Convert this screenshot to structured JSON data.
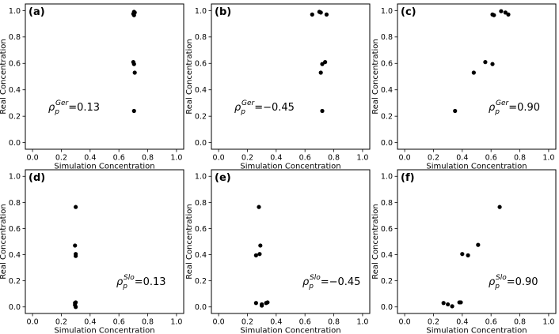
{
  "chart_data": [
    {
      "type": "scatter",
      "panel_label": "(a)",
      "xlabel": "Simulation Concentration",
      "ylabel": "Real Concentration",
      "xlim": [
        -0.05,
        1.05
      ],
      "ylim": [
        -0.05,
        1.05
      ],
      "xticks": [
        "0.0",
        "0.2",
        "0.4",
        "0.6",
        "0.8",
        "1.0"
      ],
      "yticks": [
        "0.0",
        "0.2",
        "0.4",
        "0.6",
        "0.8",
        "1.0"
      ],
      "annotation": {
        "symbol": "ρ",
        "sub": "p",
        "sup": "Ger",
        "value": "0.13",
        "position": "left-middle"
      },
      "points": [
        [
          0.705,
          0.99
        ],
        [
          0.7,
          0.975
        ],
        [
          0.71,
          0.985
        ],
        [
          0.705,
          0.965
        ],
        [
          0.7,
          0.61
        ],
        [
          0.705,
          0.595
        ],
        [
          0.71,
          0.53
        ],
        [
          0.705,
          0.24
        ]
      ]
    },
    {
      "type": "scatter",
      "panel_label": "(b)",
      "xlabel": "Simulation Concentration",
      "ylabel": "Real Concentration",
      "xlim": [
        -0.05,
        1.05
      ],
      "ylim": [
        -0.05,
        1.05
      ],
      "xticks": [
        "0.0",
        "0.2",
        "0.4",
        "0.6",
        "0.8",
        "1.0"
      ],
      "yticks": [
        "0.0",
        "0.2",
        "0.4",
        "0.6",
        "0.8",
        "1.0"
      ],
      "annotation": {
        "symbol": "ρ",
        "sub": "p",
        "sup": "Ger",
        "value": "−0.45",
        "position": "left-middle"
      },
      "points": [
        [
          0.65,
          0.97
        ],
        [
          0.7,
          0.99
        ],
        [
          0.75,
          0.97
        ],
        [
          0.71,
          0.985
        ],
        [
          0.74,
          0.61
        ],
        [
          0.72,
          0.595
        ],
        [
          0.71,
          0.53
        ],
        [
          0.72,
          0.24
        ]
      ]
    },
    {
      "type": "scatter",
      "panel_label": "(c)",
      "xlabel": "Simulation Concentration",
      "ylabel": "Real Concentration",
      "xlim": [
        -0.05,
        1.05
      ],
      "ylim": [
        -0.05,
        1.05
      ],
      "xticks": [
        "0.0",
        "0.2",
        "0.4",
        "0.6",
        "0.8",
        "1.0"
      ],
      "yticks": [
        "0.0",
        "0.2",
        "0.4",
        "0.6",
        "0.8",
        "1.0"
      ],
      "annotation": {
        "symbol": "ρ",
        "sub": "p",
        "sup": "Ger",
        "value": "0.90",
        "position": "right-middle"
      },
      "points": [
        [
          0.61,
          0.97
        ],
        [
          0.62,
          0.965
        ],
        [
          0.67,
          0.995
        ],
        [
          0.7,
          0.985
        ],
        [
          0.72,
          0.97
        ],
        [
          0.56,
          0.61
        ],
        [
          0.61,
          0.595
        ],
        [
          0.48,
          0.53
        ],
        [
          0.35,
          0.24
        ]
      ]
    },
    {
      "type": "scatter",
      "panel_label": "(d)",
      "xlabel": "Simulation Concentration",
      "ylabel": "Real Concentration",
      "xlim": [
        -0.05,
        1.05
      ],
      "ylim": [
        -0.05,
        1.05
      ],
      "xticks": [
        "0.0",
        "0.2",
        "0.4",
        "0.6",
        "0.8",
        "1.0"
      ],
      "yticks": [
        "0.0",
        "0.2",
        "0.4",
        "0.6",
        "0.8",
        "1.0"
      ],
      "annotation": {
        "symbol": "ρ",
        "sub": "p",
        "sup": "Slo",
        "value": "0.13",
        "position": "right-middle"
      },
      "points": [
        [
          0.3,
          0.765
        ],
        [
          0.295,
          0.47
        ],
        [
          0.3,
          0.405
        ],
        [
          0.3,
          0.39
        ],
        [
          0.295,
          0.03
        ],
        [
          0.3,
          0.035
        ],
        [
          0.295,
          0.015
        ],
        [
          0.3,
          0.0
        ]
      ]
    },
    {
      "type": "scatter",
      "panel_label": "(e)",
      "xlabel": "Simulation Concentration",
      "ylabel": "Real Concentration",
      "xlim": [
        -0.05,
        1.05
      ],
      "ylim": [
        -0.05,
        1.05
      ],
      "xticks": [
        "0.0",
        "0.2",
        "0.4",
        "0.6",
        "0.8",
        "1.0"
      ],
      "yticks": [
        "0.0",
        "0.2",
        "0.4",
        "0.6",
        "0.8",
        "1.0"
      ],
      "annotation": {
        "symbol": "ρ",
        "sub": "p",
        "sup": "Slo",
        "value": "−0.45",
        "position": "right-middle"
      },
      "points": [
        [
          0.28,
          0.765
        ],
        [
          0.29,
          0.47
        ],
        [
          0.26,
          0.395
        ],
        [
          0.285,
          0.405
        ],
        [
          0.26,
          0.03
        ],
        [
          0.3,
          0.02
        ],
        [
          0.3,
          0.01
        ],
        [
          0.34,
          0.035
        ],
        [
          0.33,
          0.03
        ]
      ]
    },
    {
      "type": "scatter",
      "panel_label": "(f)",
      "xlabel": "Simulation Concentration",
      "ylabel": "Real Concentration",
      "xlim": [
        -0.05,
        1.05
      ],
      "ylim": [
        -0.05,
        1.05
      ],
      "xticks": [
        "0.0",
        "0.2",
        "0.4",
        "0.6",
        "0.8",
        "1.0"
      ],
      "yticks": [
        "0.0",
        "0.2",
        "0.4",
        "0.6",
        "0.8",
        "1.0"
      ],
      "annotation": {
        "symbol": "ρ",
        "sub": "p",
        "sup": "Slo",
        "value": "0.90",
        "position": "right-middle"
      },
      "points": [
        [
          0.66,
          0.765
        ],
        [
          0.51,
          0.475
        ],
        [
          0.4,
          0.405
        ],
        [
          0.44,
          0.395
        ],
        [
          0.27,
          0.03
        ],
        [
          0.3,
          0.02
        ],
        [
          0.33,
          0.005
        ],
        [
          0.38,
          0.035
        ],
        [
          0.39,
          0.035
        ]
      ]
    }
  ]
}
